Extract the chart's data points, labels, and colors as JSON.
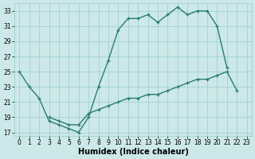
{
  "line1_x": [
    0,
    1,
    2,
    3,
    4,
    5,
    6,
    7,
    8,
    9,
    10,
    11,
    12,
    13,
    14,
    15,
    16,
    17,
    18,
    19,
    20,
    21,
    22
  ],
  "line1_y": [
    25,
    23,
    21.5,
    18.5,
    18.0,
    17.5,
    17.0,
    19.0,
    23.0,
    26.5,
    30.5,
    32.0,
    32.0,
    32.5,
    31.5,
    32.5,
    33.5,
    32.5,
    33.0,
    33.0,
    31.0,
    25.5,
    null
  ],
  "line2_x": [
    3,
    4,
    5,
    6,
    7,
    8,
    9,
    10,
    11,
    12,
    13,
    14,
    15,
    16,
    17,
    18,
    19,
    20,
    21,
    22
  ],
  "line2_y": [
    19.0,
    18.5,
    18.0,
    18.0,
    19.5,
    20.0,
    20.5,
    21.0,
    21.5,
    21.5,
    22.0,
    22.0,
    22.5,
    23.0,
    23.5,
    24.0,
    24.0,
    24.5,
    25.0,
    22.5
  ],
  "line_color": "#2a7d6e",
  "bg_color": "#cce8e8",
  "grid_color": "#99cccc",
  "xlabel": "Humidex (Indice chaleur)",
  "xlim": [
    -0.5,
    23.5
  ],
  "ylim": [
    16.5,
    34
  ],
  "yticks": [
    17,
    19,
    21,
    23,
    25,
    27,
    29,
    31,
    33
  ],
  "xticks": [
    0,
    1,
    2,
    3,
    4,
    5,
    6,
    7,
    8,
    9,
    10,
    11,
    12,
    13,
    14,
    15,
    16,
    17,
    18,
    19,
    20,
    21,
    22,
    23
  ],
  "axis_fontsize": 7,
  "tick_fontsize": 5.5,
  "line_width": 1.0,
  "marker": "+",
  "marker_size": 3.5,
  "marker_edge_width": 0.9
}
